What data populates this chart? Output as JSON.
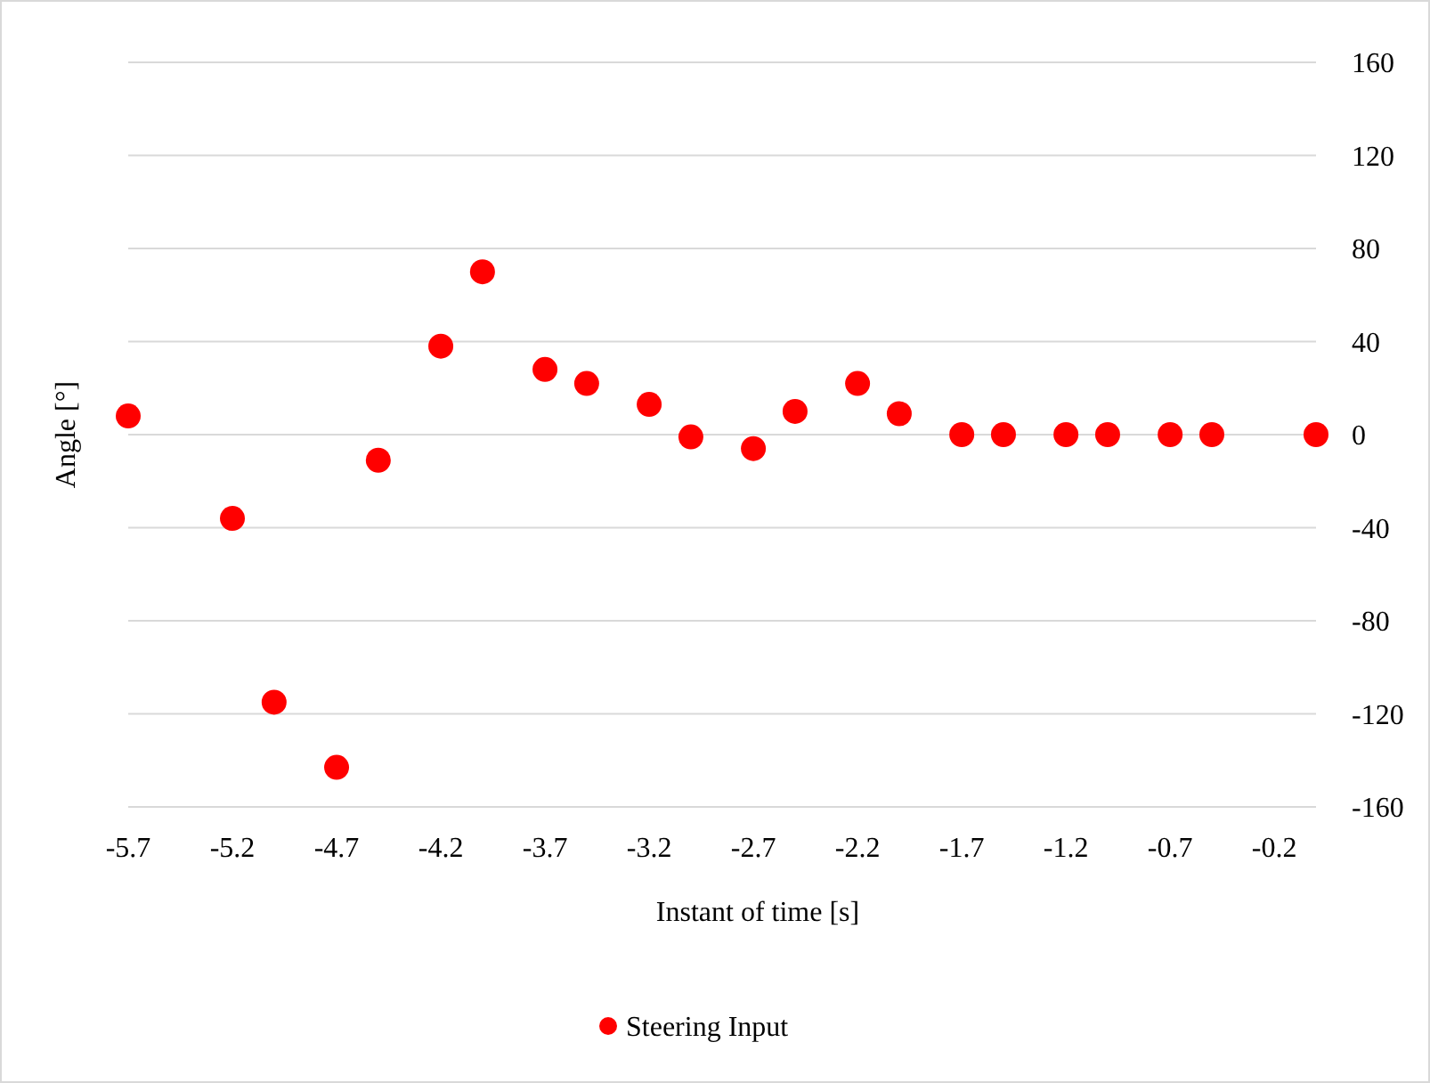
{
  "chart_data": {
    "type": "scatter",
    "xlabel": "Instant of time [s]",
    "ylabel": "Angle [°]",
    "x": [
      -5.7,
      -5.2,
      -5.0,
      -4.7,
      -4.5,
      -4.2,
      -4.0,
      -3.7,
      -3.5,
      -3.2,
      -3.0,
      -2.7,
      -2.5,
      -2.2,
      -2.0,
      -1.7,
      -1.5,
      -1.2,
      -1.0,
      -0.7,
      -0.5,
      0.0
    ],
    "series": [
      {
        "name": "Steering Input",
        "color": "#ff0000",
        "values": [
          8,
          -36,
          -115,
          -143,
          -11,
          38,
          70,
          28,
          22,
          13,
          -1,
          -6,
          10,
          22,
          9,
          0,
          0,
          0,
          0,
          0,
          0,
          0
        ]
      }
    ],
    "xlim": [
      -5.7,
      0
    ],
    "xticks": [
      -5.7,
      -5.2,
      -4.7,
      -4.2,
      -3.7,
      -3.2,
      -2.7,
      -2.2,
      -1.7,
      -1.2,
      -0.7,
      -0.2
    ],
    "ylim": [
      -160,
      160
    ],
    "yticks": [
      -160,
      -120,
      -80,
      -40,
      0,
      40,
      80,
      120,
      160
    ],
    "grid": "y",
    "legend": "bottom",
    "marker": "circle"
  }
}
